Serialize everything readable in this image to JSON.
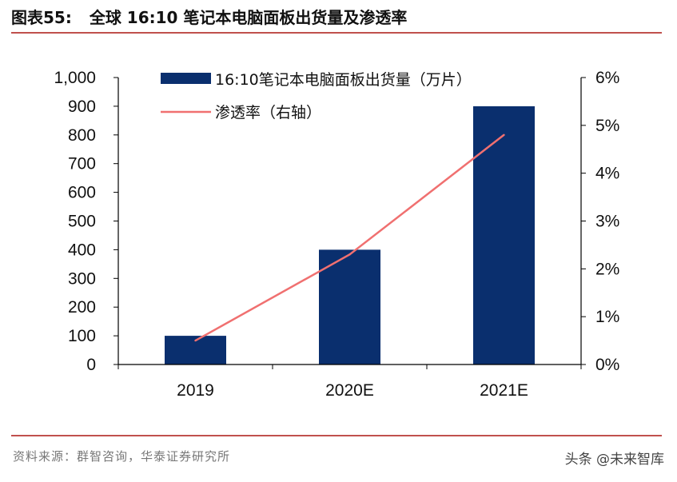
{
  "header": {
    "figure_label": "图表55:",
    "title": "全球 16:10 笔记本电脑面板出货量及渗透率"
  },
  "footer": {
    "source": "资料来源：群智咨询，华泰证券研究所",
    "watermark": "头条 @未来智库"
  },
  "colors": {
    "bar": "#0a2f6e",
    "line": "#f07070",
    "rule": "#c0504d"
  },
  "chart_data": {
    "type": "bar",
    "categories": [
      "2019",
      "2020E",
      "2021E"
    ],
    "series": [
      {
        "name": "16:10笔记本电脑面板出货量（万片）",
        "type": "bar",
        "axis": "left",
        "values": [
          100,
          400,
          900
        ]
      },
      {
        "name": "渗透率（右轴）",
        "type": "line",
        "axis": "right",
        "values": [
          0.5,
          2.3,
          4.8
        ]
      }
    ],
    "ylim": [
      0,
      1000
    ],
    "y_ticks": [
      "0",
      "100",
      "200",
      "300",
      "400",
      "500",
      "600",
      "700",
      "800",
      "900",
      "1,000"
    ],
    "y2lim": [
      0,
      6
    ],
    "y2_ticks": [
      "0%",
      "1%",
      "2%",
      "3%",
      "4%",
      "5%",
      "6%"
    ],
    "legend_position": "top-left",
    "grid": false
  }
}
